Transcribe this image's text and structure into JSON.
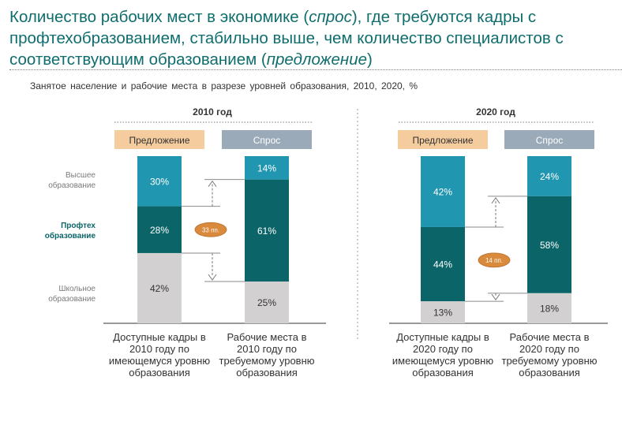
{
  "title": {
    "part1": "Количество рабочих мест в экономике (",
    "em1": "спрос",
    "part2": "), где требуются кадры с профтехобразованием, стабильно выше, чем количество специалистов с соответствующим образованием (",
    "em2": "предложение",
    "part3": ")"
  },
  "subtitle": "Занятое население и рабочие места в разрезе уровней образования, 2010, 2020, %",
  "colors": {
    "higher": "#2196b0",
    "vocational": "#0b6468",
    "school": "#d3d0d1",
    "supply_tag": "#f5cc9e",
    "demand_tag": "#9aaab8",
    "bubble": "#d98a3c"
  },
  "chart_data": {
    "type": "bar",
    "stacked": true,
    "normalized_to": 100,
    "row_labels": [
      {
        "label": "Высшее образование",
        "emphasis": false
      },
      {
        "label": "Профтех образование",
        "emphasis": true
      },
      {
        "label": "Школьное образование",
        "emphasis": false
      }
    ],
    "panels": [
      {
        "header": "2010 год",
        "gap_label": "33 пп.",
        "bars": [
          {
            "tag": "Предложение",
            "caption": "Доступные кадры в 2010 году по имеющемуся уровню образования",
            "values": {
              "higher": 30,
              "vocational": 28,
              "school": 42
            },
            "labels": {
              "higher": "30%",
              "vocational": "28%",
              "school": "42%"
            }
          },
          {
            "tag": "Спрос",
            "caption": "Рабочие места в 2010 году по требуемому уровню образования",
            "values": {
              "higher": 14,
              "vocational": 61,
              "school": 25
            },
            "labels": {
              "higher": "14%",
              "vocational": "61%",
              "school": "25%"
            }
          }
        ]
      },
      {
        "header": "2020 год",
        "gap_label": "14 пп.",
        "bars": [
          {
            "tag": "Предложение",
            "caption": "Доступные кадры в 2020 году по имеющемуся уровню образования",
            "values": {
              "higher": 42,
              "vocational": 44,
              "school": 13
            },
            "labels": {
              "higher": "42%",
              "vocational": "44%",
              "school": "13%"
            }
          },
          {
            "tag": "Спрос",
            "caption": "Рабочие места в 2020 году по требуемому уровню образования",
            "values": {
              "higher": 24,
              "vocational": 58,
              "school": 18
            },
            "labels": {
              "higher": "24%",
              "vocational": "58%",
              "school": "18%"
            }
          }
        ]
      }
    ]
  }
}
